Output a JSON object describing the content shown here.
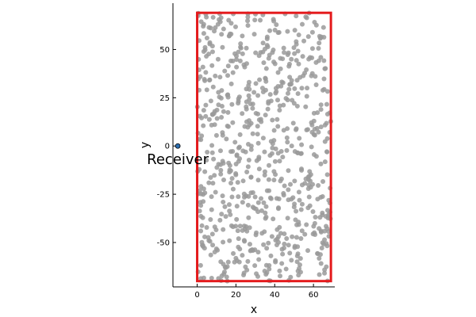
{
  "chart_data": {
    "type": "scatter",
    "xlabel": "x",
    "ylabel": "y",
    "xlim": [
      -12.5,
      71
    ],
    "ylim": [
      -73,
      74
    ],
    "xticks": [
      0,
      20,
      40,
      60
    ],
    "yticks": [
      -50,
      -25,
      0,
      25,
      50
    ],
    "grid": false,
    "legend": "none",
    "colors": {
      "scatterer": "#9a9a9a",
      "boundary": "#e41a1c",
      "receiver": "#2e6fb0",
      "axis": "#000000"
    },
    "boundary": {
      "x": [
        0,
        69
      ],
      "y": [
        -70,
        69
      ]
    },
    "receiver": {
      "x": -10,
      "y": 0,
      "label": "Receiver"
    },
    "scatter_layout": {
      "count": 720,
      "seed": 7
    }
  }
}
